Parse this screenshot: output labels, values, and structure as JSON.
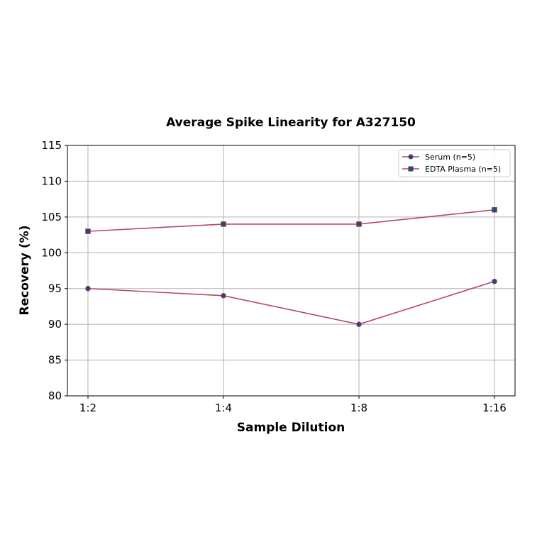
{
  "chart_data": {
    "type": "line",
    "title": "Average Spike Linearity for A327150",
    "xlabel": "Sample Dilution",
    "ylabel": "Recovery (%)",
    "categories": [
      "1:2",
      "1:4",
      "1:8",
      "1:16"
    ],
    "ylim": [
      80,
      115
    ],
    "yticks": [
      80,
      85,
      90,
      95,
      100,
      105,
      110,
      115
    ],
    "grid": true,
    "legend_position": "upper right",
    "series": [
      {
        "name": "Serum (n=5)",
        "marker": "circle",
        "values": [
          95,
          94,
          90,
          96
        ]
      },
      {
        "name": "EDTA Plasma (n=5)",
        "marker": "square",
        "values": [
          103,
          104,
          104,
          106
        ]
      }
    ]
  },
  "colors": {
    "line": "#b5476a",
    "marker": "#33476e",
    "grid": "#b0b0b0",
    "axis": "#000000"
  }
}
